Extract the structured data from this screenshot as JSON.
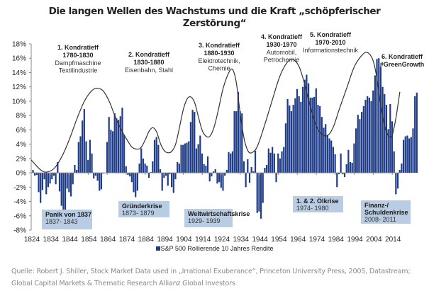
{
  "chart_data": {
    "type": "bar",
    "title": "Die langen Wellen des Wachstums und die Kraft „schöpferischer Zerstörung“",
    "xlabel": "",
    "ylabel": "",
    "ylim": [
      -8,
      18
    ],
    "y_ticks": [
      "18%",
      "16%",
      "14%",
      "12%",
      "10%",
      "8%",
      "6%",
      "4%",
      "2%",
      "0%",
      "-2%",
      "-4%",
      "-6%",
      "-8%"
    ],
    "y_tick_values": [
      18,
      16,
      14,
      12,
      10,
      8,
      6,
      4,
      2,
      0,
      -2,
      -4,
      -6,
      -8
    ],
    "x_ticks": [
      "1824",
      "1834",
      "1844",
      "1854",
      "1864",
      "1874",
      "1884",
      "1894",
      "1904",
      "1914",
      "1924",
      "1934",
      "1944",
      "1954",
      "1964",
      "1974",
      "1984",
      "1994",
      "2004",
      "2014"
    ],
    "x_tick_values": [
      1824,
      1834,
      1844,
      1854,
      1864,
      1874,
      1884,
      1894,
      1904,
      1914,
      1924,
      1934,
      1944,
      1954,
      1964,
      1974,
      1984,
      1994,
      2004,
      2014
    ],
    "x_range": [
      1824,
      2018
    ],
    "legend": {
      "label": "S&P 500 Rollierende 10 Jahres Rendite",
      "position": "bottom",
      "color": "#1f3c88"
    },
    "series": [
      {
        "name": "S&P 500 Rollierende 10 Jahres Rendite",
        "start_year": 1825,
        "values": [
          0.4,
          -0.4,
          -0.3,
          -2.7,
          -4.2,
          -2.4,
          -0.9,
          -3.0,
          -2.0,
          -1.5,
          -0.9,
          -0.4,
          -1.6,
          1.5,
          -2.6,
          -4.6,
          -5.5,
          -5.4,
          -2.2,
          -2.7,
          -3.3,
          -1.6,
          1.1,
          0.4,
          4.3,
          5.1,
          7.3,
          8.9,
          4.4,
          1.8,
          4.6,
          2.7,
          -0.8,
          -0.4,
          -1.1,
          -2.5,
          -2.3,
          -0.1,
          0.0,
          4.3,
          7.8,
          6.0,
          5.8,
          8.3,
          7.6,
          7.4,
          7.9,
          9.1,
          5.3,
          0.9,
          -0.3,
          -0.5,
          -1.3,
          -2.7,
          -3.4,
          -2.5,
          1.3,
          3.4,
          2.0,
          1.3,
          1.0,
          -0.7,
          0.1,
          1.6,
          4.6,
          5.0,
          3.9,
          0.5,
          -2.5,
          -0.7,
          -0.4,
          -1.8,
          -0.2,
          -2.0,
          -2.8,
          -0.9,
          1.5,
          1.3,
          3.9,
          3.9,
          4.1,
          4.2,
          4.4,
          7.1,
          8.8,
          8.5,
          3.4,
          4.0,
          5.2,
          2.7,
          1.2,
          1.0,
          2.3,
          -1.2,
          -0.5,
          0.2,
          0.5,
          -1.5,
          -1.3,
          -2.1,
          -2.5,
          -0.4,
          0.4,
          2.9,
          2.7,
          3.0,
          8.6,
          8.6,
          11.3,
          8.6,
          8.3,
          1.6,
          -2.0,
          1.9,
          -1.4,
          0.8,
          0.2,
          3.1,
          -5.6,
          -5.4,
          -6.4,
          -4.2,
          0.7,
          1.1,
          3.4,
          2.8,
          3.6,
          2.7,
          -1.3,
          2.7,
          2.0,
          3.0,
          3.6,
          6.9,
          10.3,
          9.4,
          8.6,
          9.5,
          10.4,
          11.7,
          10.7,
          9.9,
          12.0,
          13.0,
          13.7,
          12.5,
          10.5,
          10.5,
          10.6,
          11.8,
          9.5,
          9.3,
          7.8,
          6.3,
          6.8,
          5.3,
          4.8,
          4.5,
          3.6,
          2.6,
          -2.0,
          -0.2,
          2.7,
          -0.2,
          -0.6,
          1.2,
          3.2,
          1.5,
          1.4,
          4.1,
          6.2,
          8.1,
          7.5,
          8.5,
          9.3,
          10.2,
          10.7,
          10.5,
          10.0,
          11.5,
          13.6,
          15.9,
          16.0,
          14.8,
          12.0,
          11.0,
          9.5,
          6.1,
          9.6,
          7.2,
          3.0,
          -3.0,
          -2.2,
          0.4,
          1.3,
          4.6,
          5.1,
          5.2,
          4.8,
          5.0,
          6.2,
          10.7,
          11.2
        ]
      }
    ],
    "wave_curve": {
      "name": "Kondratieff-Welle",
      "points": [
        [
          1824,
          1.8
        ],
        [
          1826,
          1.2
        ],
        [
          1829,
          0.4
        ],
        [
          1832,
          0.1
        ],
        [
          1836,
          0.6
        ],
        [
          1840,
          2.2
        ],
        [
          1844,
          4.6
        ],
        [
          1848,
          7.5
        ],
        [
          1852,
          10.0
        ],
        [
          1856,
          11.5
        ],
        [
          1859,
          11.8
        ],
        [
          1862,
          11.4
        ],
        [
          1865,
          10.0
        ],
        [
          1868,
          8.0
        ],
        [
          1871,
          6.2
        ],
        [
          1874,
          4.8
        ],
        [
          1877,
          3.6
        ],
        [
          1880,
          3.3
        ],
        [
          1882,
          3.6
        ],
        [
          1884,
          4.6
        ],
        [
          1886,
          5.8
        ],
        [
          1888,
          6.3
        ],
        [
          1890,
          5.7
        ],
        [
          1892,
          4.1
        ],
        [
          1894,
          3.1
        ],
        [
          1896,
          2.8
        ],
        [
          1898,
          3.0
        ],
        [
          1900,
          4.0
        ],
        [
          1902,
          6.3
        ],
        [
          1904,
          8.8
        ],
        [
          1906,
          10.3
        ],
        [
          1908,
          10.6
        ],
        [
          1910,
          9.8
        ],
        [
          1912,
          7.8
        ],
        [
          1914,
          5.9
        ],
        [
          1916,
          5.1
        ],
        [
          1918,
          5.1
        ],
        [
          1920,
          6.2
        ],
        [
          1922,
          8.2
        ],
        [
          1925,
          11.8
        ],
        [
          1928,
          14.0
        ],
        [
          1930,
          14.4
        ],
        [
          1932,
          12.5
        ],
        [
          1934,
          8.2
        ],
        [
          1936,
          4.8
        ],
        [
          1938,
          3.1
        ],
        [
          1940,
          2.8
        ],
        [
          1943,
          3.7
        ],
        [
          1947,
          6.8
        ],
        [
          1951,
          10.3
        ],
        [
          1955,
          13.6
        ],
        [
          1959,
          15.5
        ],
        [
          1962,
          15.8
        ],
        [
          1965,
          14.8
        ],
        [
          1968,
          12.3
        ],
        [
          1971,
          9.1
        ],
        [
          1974,
          6.5
        ],
        [
          1977,
          5.4
        ],
        [
          1980,
          5.2
        ],
        [
          1983,
          6.4
        ],
        [
          1986,
          8.8
        ],
        [
          1990,
          11.8
        ],
        [
          1994,
          14.8
        ],
        [
          1998,
          16.4
        ],
        [
          2001,
          16.8
        ],
        [
          2004,
          15.6
        ],
        [
          2006,
          13.0
        ],
        [
          2008,
          9.4
        ],
        [
          2010,
          6.6
        ],
        [
          2012,
          5.1
        ],
        [
          2014,
          5.3
        ],
        [
          2016,
          7.8
        ],
        [
          2018,
          11.3
        ]
      ]
    },
    "wave_annotations": [
      {
        "title": "1. Kondratieff",
        "period": "1780-1830",
        "lines": [
          "Dampfmaschine",
          "Textilindustrie"
        ]
      },
      {
        "title": "2. Kondratieff",
        "period": "1830-1880",
        "lines": [
          "Eisenbahn, Stahl"
        ]
      },
      {
        "title": "3. Kondratieff",
        "period": "1880-1930",
        "lines": [
          "Elektrotechnik,",
          "Chemie"
        ]
      },
      {
        "title": "4. Kondratieff",
        "period": "1930-1970",
        "lines": [
          "Automobil,",
          "Petrochemie"
        ]
      },
      {
        "title": "5. Kondratieff",
        "period": "1970-2010",
        "lines": [
          "Informationstechnik"
        ]
      },
      {
        "title": "6. Kondratieff",
        "period": "#GreenGrowth",
        "lines": []
      }
    ],
    "crisis_annotations": [
      {
        "title": "Panik von 1837",
        "period": "1837- 1843"
      },
      {
        "title": "Gründerkrise",
        "period": "1873- 1879"
      },
      {
        "title": "Weltwirtschaftskrise",
        "period": "1929- 1939"
      },
      {
        "title": "1. & 2. Ölkrise",
        "period": "1974- 1980"
      },
      {
        "title_lines": [
          "Finanz-/",
          "Schuldenkrise"
        ],
        "period": "2008- 2011"
      }
    ],
    "colors": {
      "bar": "#1f3c88",
      "bar_edge": "#ffffff",
      "curve": "#333333",
      "crisis_box": "#b8cce4",
      "green_growth": "#4f5f1f"
    }
  },
  "title_line1": "Die langen Wellen des Wachstums und die Kraft „schöpferischer",
  "title_line2": "Zerstörung“",
  "source_text": "Quelle: Robert J. Shiller, Stock Market Data used in „Irrational Exuberance“, Princeton University Press, 2005, Datastream; Global Capital Markets & Thematic Research Allianz Global Investors"
}
